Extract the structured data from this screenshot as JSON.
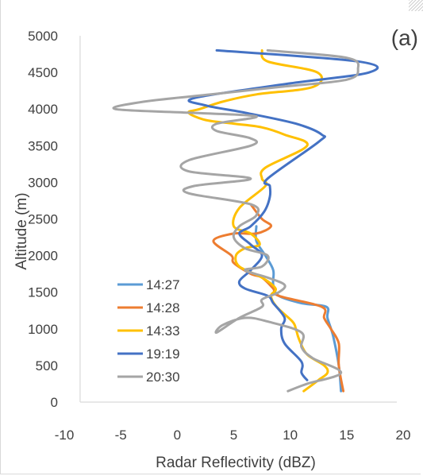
{
  "chart_data": {
    "type": "line",
    "panel_label": "(a)",
    "xlabel": "Radar Reflectivity (dBZ)",
    "ylabel": "Altitude (m)",
    "xlim": [
      -10,
      20
    ],
    "ylim": [
      0,
      5000
    ],
    "xticks": [
      -10,
      -5,
      0,
      5,
      10,
      15,
      20
    ],
    "yticks": [
      0,
      500,
      1000,
      1500,
      2000,
      2500,
      3000,
      3500,
      4000,
      4500,
      5000
    ],
    "grid": false,
    "legend_position": "bottom-left",
    "series": [
      {
        "name": "14:27",
        "color": "#5b9bd5",
        "points": [
          [
            14.5,
            150
          ],
          [
            14.3,
            500
          ],
          [
            13.8,
            900
          ],
          [
            13.3,
            1150
          ],
          [
            13.2,
            1300
          ],
          [
            11,
            1350
          ],
          [
            9,
            1450
          ],
          [
            8.5,
            1600
          ],
          [
            8.5,
            1800
          ],
          [
            7.8,
            2000
          ],
          [
            7,
            2200
          ],
          [
            7,
            2400
          ]
        ]
      },
      {
        "name": "14:28",
        "color": "#ed7d31",
        "points": [
          [
            14.7,
            150
          ],
          [
            14.3,
            500
          ],
          [
            14.3,
            800
          ],
          [
            13.6,
            1000
          ],
          [
            13,
            1150
          ],
          [
            12.8,
            1300
          ],
          [
            9,
            1450
          ],
          [
            8.5,
            1550
          ],
          [
            7.5,
            1700
          ],
          [
            6.5,
            1750
          ],
          [
            5,
            1900
          ],
          [
            4.8,
            2000
          ],
          [
            3.2,
            2200
          ],
          [
            5,
            2300
          ],
          [
            7,
            2300
          ],
          [
            8.3,
            2400
          ],
          [
            7.5,
            2500
          ],
          [
            6.5,
            2700
          ]
        ]
      },
      {
        "name": "14:33",
        "color": "#ffc000",
        "points": [
          [
            11.2,
            150
          ],
          [
            12.5,
            300
          ],
          [
            13.3,
            400
          ],
          [
            13,
            500
          ],
          [
            11.5,
            650
          ],
          [
            10.8,
            850
          ],
          [
            10.5,
            1000
          ],
          [
            10.2,
            1100
          ],
          [
            8.8,
            1300
          ],
          [
            8.3,
            1450
          ],
          [
            8.7,
            1550
          ],
          [
            7.5,
            1700
          ],
          [
            5.5,
            1850
          ],
          [
            5.2,
            2000
          ],
          [
            6,
            2100
          ],
          [
            7.3,
            2150
          ],
          [
            6.5,
            2300
          ],
          [
            5,
            2400
          ],
          [
            5.5,
            2650
          ],
          [
            7.8,
            2950
          ],
          [
            7.5,
            3050
          ],
          [
            7.8,
            3200
          ],
          [
            11.5,
            3500
          ],
          [
            9.5,
            3650
          ],
          [
            7.5,
            3750
          ],
          [
            5,
            3800
          ],
          [
            2.5,
            3850
          ],
          [
            1,
            3950
          ],
          [
            2,
            4000
          ],
          [
            4,
            4100
          ],
          [
            7,
            4200
          ],
          [
            12,
            4300
          ],
          [
            12.4,
            4500
          ],
          [
            8,
            4650
          ],
          [
            7.5,
            4800
          ]
        ]
      },
      {
        "name": "19:19",
        "color": "#4472c4",
        "points": [
          [
            11.5,
            300
          ],
          [
            11,
            400
          ],
          [
            11,
            550
          ],
          [
            9.5,
            800
          ],
          [
            9.2,
            1000
          ],
          [
            9.5,
            1150
          ],
          [
            8.5,
            1350
          ],
          [
            8,
            1450
          ],
          [
            6,
            1550
          ],
          [
            5.5,
            1650
          ],
          [
            6.5,
            1800
          ],
          [
            7.5,
            2000
          ],
          [
            6.5,
            2150
          ],
          [
            5.5,
            2300
          ],
          [
            6.5,
            2400
          ],
          [
            7.7,
            2600
          ],
          [
            8.2,
            2800
          ],
          [
            8.2,
            2950
          ],
          [
            8,
            3050
          ],
          [
            12.5,
            3550
          ],
          [
            12.8,
            3650
          ],
          [
            10.5,
            3800
          ],
          [
            6,
            3950
          ],
          [
            2.5,
            4050
          ],
          [
            1.5,
            4150
          ],
          [
            10,
            4350
          ],
          [
            17,
            4500
          ],
          [
            16,
            4650
          ],
          [
            3.5,
            4800
          ]
        ]
      },
      {
        "name": "20:30",
        "color": "#a5a5a5",
        "points": [
          [
            9.8,
            150
          ],
          [
            11.5,
            250
          ],
          [
            14.5,
            400
          ],
          [
            12,
            600
          ],
          [
            11,
            750
          ],
          [
            11,
            950
          ],
          [
            8,
            1100
          ],
          [
            6,
            1150
          ],
          [
            4,
            1050
          ],
          [
            3.5,
            950
          ],
          [
            5.5,
            1150
          ],
          [
            7.5,
            1300
          ],
          [
            7.5,
            1400
          ],
          [
            9,
            1500
          ],
          [
            9.5,
            1600
          ],
          [
            8,
            1700
          ],
          [
            6,
            1800
          ],
          [
            7.5,
            1850
          ],
          [
            8,
            2000
          ],
          [
            6,
            2100
          ],
          [
            5,
            2250
          ],
          [
            5.5,
            2400
          ],
          [
            7,
            2550
          ],
          [
            6.5,
            2700
          ],
          [
            1,
            2850
          ],
          [
            1.5,
            2950
          ],
          [
            6.5,
            3050
          ],
          [
            1,
            3150
          ],
          [
            1,
            3300
          ],
          [
            6.5,
            3500
          ],
          [
            6.5,
            3600
          ],
          [
            3.5,
            3700
          ],
          [
            3.5,
            3800
          ],
          [
            7,
            3900
          ],
          [
            1,
            3950
          ],
          [
            -5.5,
            4000
          ],
          [
            -3,
            4100
          ],
          [
            3,
            4200
          ],
          [
            9,
            4300
          ],
          [
            15,
            4400
          ],
          [
            16,
            4550
          ],
          [
            15,
            4700
          ],
          [
            8,
            4800
          ]
        ]
      }
    ]
  }
}
